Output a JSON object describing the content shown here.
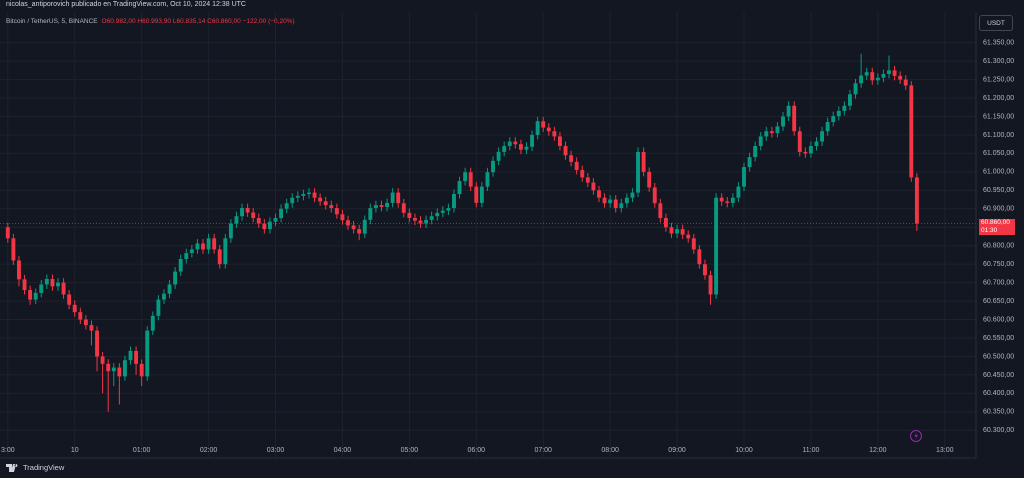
{
  "header": {
    "title": "nicolas_antiporovich publicado en TradingView.com, Oct 10, 2024 12:38 UTC",
    "symbol": "Bitcoin / TetherUS, 5, BINANCE",
    "ohlc": "O60.982,00 H60.993,90 L60.835,14 C60.860,00 −122,00 (−0,20%)",
    "currency": "USDT"
  },
  "footer": {
    "brand": "TradingView"
  },
  "last_price": {
    "label": "60.860,00",
    "countdown": "01:30"
  },
  "chart_data": {
    "type": "candlestick",
    "up_color": "#089981",
    "down_color": "#f23645",
    "xlim": [
      -1.4,
      173.6
    ],
    "xticks": [
      {
        "value": 0,
        "label": "3:00"
      },
      {
        "value": 12,
        "label": "10"
      },
      {
        "value": 24,
        "label": "01:00"
      },
      {
        "value": 36,
        "label": "02:00"
      },
      {
        "value": 48,
        "label": "03:00"
      },
      {
        "value": 60,
        "label": "04:00"
      },
      {
        "value": 72,
        "label": "05:00"
      },
      {
        "value": 84,
        "label": "06:00"
      },
      {
        "value": 96,
        "label": "07:00"
      },
      {
        "value": 108,
        "label": "08:00"
      },
      {
        "value": 120,
        "label": "09:00"
      },
      {
        "value": 132,
        "label": "10:00"
      },
      {
        "value": 144,
        "label": "11:00"
      },
      {
        "value": 156,
        "label": "12:00"
      },
      {
        "value": 168,
        "label": "13:00"
      }
    ],
    "ylim": [
      60225,
      61433
    ],
    "yticks": [
      {
        "value": 60300,
        "label": "60.300,00"
      },
      {
        "value": 60350,
        "label": "60.350,00"
      },
      {
        "value": 60400,
        "label": "60.400,00"
      },
      {
        "value": 60450,
        "label": "60.450,00"
      },
      {
        "value": 60500,
        "label": "60.500,00"
      },
      {
        "value": 60550,
        "label": "60.550,00"
      },
      {
        "value": 60600,
        "label": "60.600,00"
      },
      {
        "value": 60650,
        "label": "60.650,00"
      },
      {
        "value": 60700,
        "label": "60.700,00"
      },
      {
        "value": 60750,
        "label": "60.750,00"
      },
      {
        "value": 60800,
        "label": "60.800,00"
      },
      {
        "value": 60850,
        "label": "60.850,00"
      },
      {
        "value": 60900,
        "label": "60.900,00"
      },
      {
        "value": 60950,
        "label": "60.950,00"
      },
      {
        "value": 61000,
        "label": "61.000,00"
      },
      {
        "value": 61050,
        "label": "61.050,00"
      },
      {
        "value": 61100,
        "label": "61.100,00"
      },
      {
        "value": 61150,
        "label": "61.150,00"
      },
      {
        "value": 61200,
        "label": "61.200,00"
      },
      {
        "value": 61250,
        "label": "61.250,00"
      },
      {
        "value": 61300,
        "label": "61.300,00"
      },
      {
        "value": 61350,
        "label": "61.350,00"
      }
    ],
    "grid": true,
    "open": [
      60850,
      60820,
      60760,
      60709,
      60680,
      60654,
      60672,
      60695,
      60710,
      60690,
      60700,
      60668,
      60640,
      60620,
      60600,
      60585,
      60570,
      60500,
      60480,
      60460,
      60470,
      60446,
      60490,
      60515,
      60480,
      60446,
      60570,
      60610,
      60654,
      60670,
      60695,
      60730,
      60764,
      60780,
      60790,
      60806,
      60790,
      60820,
      60790,
      60750,
      60820,
      60860,
      60880,
      60902,
      60890,
      60875,
      60860,
      60845,
      60865,
      60875,
      60900,
      60915,
      60930,
      60935,
      60940,
      60944,
      60930,
      60920,
      60910,
      60902,
      60885,
      60869,
      60855,
      60845,
      60833,
      60870,
      60902,
      60910,
      60905,
      60916,
      60944,
      60915,
      60889,
      60875,
      60868,
      60860,
      60870,
      60880,
      60889,
      60895,
      60902,
      60940,
      60975,
      60999,
      60960,
      60916,
      60960,
      60999,
      61030,
      61054,
      61070,
      61082,
      61075,
      61060,
      61068,
      61100,
      61137,
      61120,
      61110,
      61096,
      61070,
      61045,
      61027,
      61005,
      60985,
      60971,
      60950,
      60930,
      60915,
      60925,
      60902,
      60915,
      60930,
      60944,
      61054,
      61000,
      60958,
      60915,
      60875,
      60850,
      60833,
      60845,
      60830,
      60820,
      60790,
      60750,
      60720,
      60668,
      60930,
      60920,
      60916,
      60930,
      60960,
      61013,
      61040,
      61070,
      61096,
      61110,
      61105,
      61123,
      61150,
      61179,
      61110,
      61054,
      61050,
      61070,
      61082,
      61110,
      61135,
      61151,
      61165,
      61179,
      61210,
      61240,
      61261,
      61270,
      61248,
      61255,
      61265,
      61275,
      61260,
      61250,
      61234,
      60985
    ],
    "high": [
      60862,
      60832,
      60772,
      60721,
      60692,
      60684,
      60707,
      60722,
      60722,
      60712,
      60712,
      60680,
      60652,
      60632,
      60612,
      60597,
      60582,
      60512,
      60492,
      60482,
      60482,
      60502,
      60527,
      60527,
      60492,
      60582,
      60622,
      60666,
      60682,
      60707,
      60742,
      60776,
      60792,
      60802,
      60818,
      60818,
      60832,
      60832,
      60802,
      60832,
      60872,
      60892,
      60914,
      60914,
      60902,
      60887,
      60872,
      60877,
      60887,
      60912,
      60927,
      60942,
      60947,
      60952,
      60956,
      60956,
      60942,
      60932,
      60922,
      60914,
      60897,
      60881,
      60867,
      60857,
      60882,
      60914,
      60922,
      60922,
      60928,
      60956,
      60956,
      60927,
      60901,
      60887,
      60880,
      60882,
      60892,
      60901,
      60907,
      60914,
      60952,
      60987,
      61011,
      61011,
      60972,
      60972,
      61011,
      61042,
      61066,
      61082,
      61094,
      61094,
      61087,
      61080,
      61112,
      61149,
      61149,
      61132,
      61122,
      61108,
      61082,
      61057,
      61039,
      61017,
      60997,
      60983,
      60962,
      60942,
      60937,
      60937,
      60927,
      60942,
      60956,
      61066,
      61066,
      61012,
      60970,
      60927,
      60887,
      60862,
      60857,
      60857,
      60842,
      60832,
      60802,
      60762,
      60732,
      60942,
      60942,
      60932,
      60942,
      60972,
      61025,
      61052,
      61082,
      61108,
      61122,
      61122,
      61135,
      61162,
      61191,
      61191,
      61122,
      61066,
      61082,
      61094,
      61122,
      61147,
      61163,
      61177,
      61191,
      61222,
      61252,
      61320,
      61282,
      61282,
      61267,
      61277,
      61315,
      61287,
      61272,
      61262,
      61246,
      60997
    ],
    "low": [
      60808,
      60748,
      60690,
      60668,
      60640,
      60642,
      60660,
      60683,
      60678,
      60678,
      60656,
      60628,
      60608,
      60588,
      60573,
      60530,
      60460,
      60400,
      60350,
      60420,
      60370,
      60434,
      60478,
      60450,
      60420,
      60434,
      60558,
      60598,
      60642,
      60658,
      60683,
      60718,
      60752,
      60768,
      60778,
      60778,
      60778,
      60778,
      60738,
      60738,
      60808,
      60848,
      60868,
      60878,
      60863,
      60848,
      60833,
      60833,
      60853,
      60863,
      60888,
      60903,
      60918,
      60923,
      60928,
      60918,
      60908,
      60898,
      60890,
      60873,
      60857,
      60843,
      60833,
      60815,
      60821,
      60858,
      60890,
      60893,
      60893,
      60904,
      60903,
      60877,
      60863,
      60856,
      60848,
      60848,
      60858,
      60868,
      60877,
      60883,
      60890,
      60928,
      60963,
      60948,
      60904,
      60904,
      60948,
      60987,
      61018,
      61042,
      61058,
      61063,
      61048,
      61048,
      61056,
      61088,
      61108,
      61098,
      61084,
      61058,
      61033,
      61015,
      60993,
      60973,
      60959,
      60938,
      60918,
      60903,
      60903,
      60890,
      60890,
      60903,
      60918,
      60932,
      60988,
      60946,
      60903,
      60863,
      60838,
      60821,
      60821,
      60818,
      60808,
      60778,
      60738,
      60708,
      60640,
      60656,
      60908,
      60904,
      60904,
      60918,
      60948,
      61001,
      61028,
      61058,
      61084,
      61093,
      61093,
      61111,
      61138,
      61098,
      61042,
      61038,
      61038,
      61058,
      61070,
      61098,
      61123,
      61139,
      61153,
      61167,
      61198,
      61228,
      61249,
      61236,
      61236,
      61243,
      61253,
      61248,
      61238,
      61222,
      60973,
      60840
    ],
    "close": [
      60820,
      60760,
      60709,
      60680,
      60654,
      60672,
      60695,
      60710,
      60690,
      60700,
      60668,
      60640,
      60620,
      60600,
      60585,
      60570,
      60500,
      60480,
      60460,
      60470,
      60446,
      60490,
      60515,
      60480,
      60446,
      60570,
      60610,
      60654,
      60670,
      60695,
      60730,
      60764,
      60780,
      60790,
      60806,
      60790,
      60820,
      60790,
      60750,
      60820,
      60860,
      60880,
      60902,
      60890,
      60875,
      60860,
      60845,
      60865,
      60875,
      60900,
      60915,
      60930,
      60935,
      60940,
      60944,
      60930,
      60920,
      60910,
      60902,
      60885,
      60869,
      60855,
      60845,
      60833,
      60870,
      60902,
      60910,
      60905,
      60916,
      60944,
      60915,
      60889,
      60875,
      60868,
      60860,
      60870,
      60880,
      60889,
      60895,
      60902,
      60940,
      60975,
      60999,
      60960,
      60916,
      60960,
      60999,
      61030,
      61054,
      61070,
      61082,
      61075,
      61060,
      61068,
      61100,
      61137,
      61120,
      61110,
      61096,
      61070,
      61045,
      61027,
      61005,
      60985,
      60971,
      60950,
      60930,
      60915,
      60925,
      60902,
      60915,
      60930,
      60944,
      61054,
      61000,
      60958,
      60915,
      60875,
      60850,
      60833,
      60845,
      60830,
      60820,
      60790,
      60750,
      60720,
      60668,
      60930,
      60920,
      60916,
      60930,
      60960,
      61013,
      61040,
      61070,
      61096,
      61110,
      61105,
      61123,
      61150,
      61179,
      61110,
      61054,
      61050,
      61070,
      61082,
      61110,
      61135,
      61151,
      61165,
      61179,
      61210,
      61240,
      61261,
      61270,
      61248,
      61255,
      61265,
      61275,
      61260,
      61250,
      61234,
      60985,
      60860
    ]
  }
}
